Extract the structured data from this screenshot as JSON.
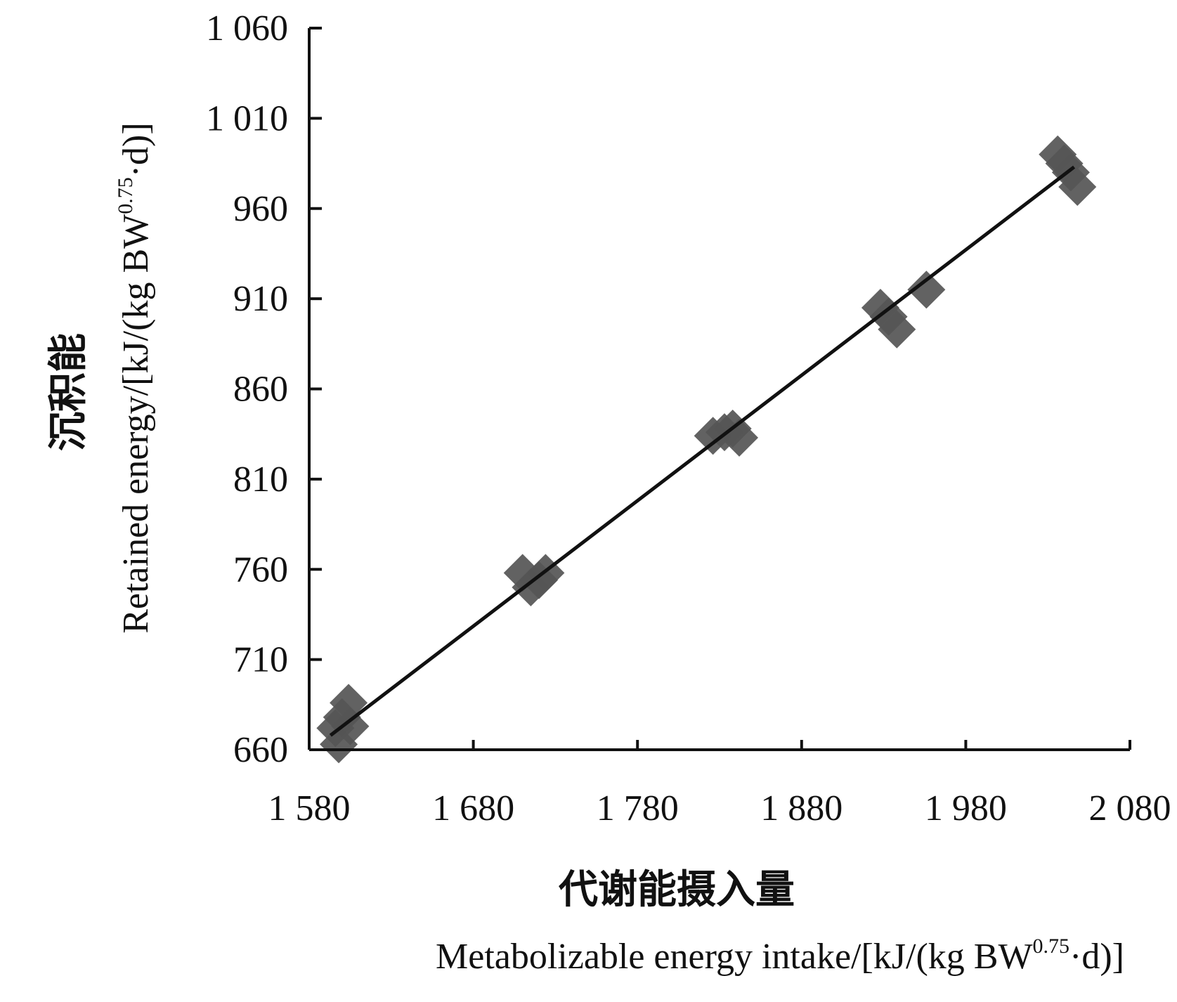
{
  "chart_data": {
    "type": "scatter",
    "title": "",
    "xlabel": {
      "cn": "代谢能摄入量",
      "en_prefix": "Metabolizable energy intake/[kJ/(kg BW",
      "en_sup": "0.75",
      "en_suffix": "·d)]"
    },
    "ylabel": {
      "cn": "沉积能",
      "en_prefix": "Retained energy/[kJ/(kg BW",
      "en_sup": "0.75",
      "en_suffix": "·d)]"
    },
    "xlim": [
      1580,
      2080
    ],
    "ylim": [
      660,
      1060
    ],
    "x_ticks": [
      1580,
      1680,
      1780,
      1880,
      1980,
      2080
    ],
    "x_tick_labels": [
      "1 580",
      "1 680",
      "1 780",
      "1 880",
      "1 980",
      "2 080"
    ],
    "y_ticks": [
      660,
      710,
      760,
      810,
      860,
      910,
      960,
      1010,
      1060
    ],
    "y_tick_labels": [
      "660",
      "710",
      "760",
      "810",
      "860",
      "910",
      "960",
      "1 010",
      "1 060"
    ],
    "series": [
      {
        "marker": "diamond",
        "color": "#555555",
        "points": [
          {
            "x": 1596,
            "y": 672
          },
          {
            "x": 1600,
            "y": 678
          },
          {
            "x": 1604,
            "y": 686
          },
          {
            "x": 1598,
            "y": 663
          },
          {
            "x": 1605,
            "y": 673
          },
          {
            "x": 1710,
            "y": 758
          },
          {
            "x": 1715,
            "y": 750
          },
          {
            "x": 1720,
            "y": 754
          },
          {
            "x": 1724,
            "y": 758
          },
          {
            "x": 1826,
            "y": 834
          },
          {
            "x": 1833,
            "y": 836
          },
          {
            "x": 1838,
            "y": 838
          },
          {
            "x": 1842,
            "y": 833
          },
          {
            "x": 1928,
            "y": 905
          },
          {
            "x": 1933,
            "y": 900
          },
          {
            "x": 1938,
            "y": 893
          },
          {
            "x": 1956,
            "y": 915
          },
          {
            "x": 2036,
            "y": 990
          },
          {
            "x": 2040,
            "y": 985
          },
          {
            "x": 2044,
            "y": 980
          },
          {
            "x": 2048,
            "y": 972
          }
        ]
      },
      {
        "type": "line",
        "color": "#111111",
        "x": [
          1593,
          2046
        ],
        "y": [
          668,
          983
        ]
      }
    ],
    "legend": "none",
    "grid": false
  }
}
